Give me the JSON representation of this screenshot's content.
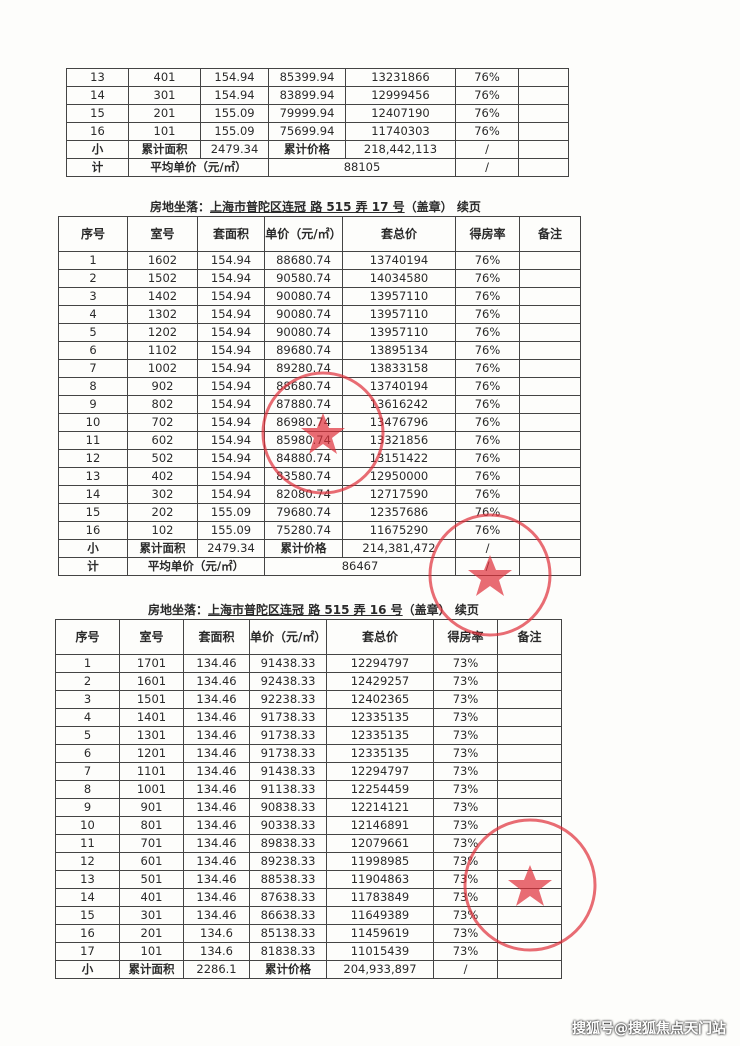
{
  "headers": [
    "序号",
    "室号",
    "套面积",
    "单价（元/㎡）",
    "套总价",
    "得房率",
    "备注"
  ],
  "labels": {
    "subtotal_top": "小",
    "subtotal_bottom": "计",
    "total_area": "累计面积",
    "total_price": "累计价格",
    "avg_price": "平均单价（元/㎡）",
    "slash": "/"
  },
  "table1": {
    "rows": [
      [
        "13",
        "401",
        "154.94",
        "85399.94",
        "13231866",
        "76%",
        ""
      ],
      [
        "14",
        "301",
        "154.94",
        "83899.94",
        "12999456",
        "76%",
        ""
      ],
      [
        "15",
        "201",
        "155.09",
        "79999.94",
        "12407190",
        "76%",
        ""
      ],
      [
        "16",
        "101",
        "155.09",
        "75699.94",
        "11740303",
        "76%",
        ""
      ]
    ],
    "total_area": "2479.34",
    "total_price": "218,442,113",
    "avg_price": "88105"
  },
  "table2": {
    "title_prefix": "房地坐落：",
    "title_address": "上海市普陀区连冠 路 515 弄  17 号",
    "title_suffix": "（盖章） 续页",
    "rows": [
      [
        "1",
        "1602",
        "154.94",
        "88680.74",
        "13740194",
        "76%",
        ""
      ],
      [
        "2",
        "1502",
        "154.94",
        "90580.74",
        "14034580",
        "76%",
        ""
      ],
      [
        "3",
        "1402",
        "154.94",
        "90080.74",
        "13957110",
        "76%",
        ""
      ],
      [
        "4",
        "1302",
        "154.94",
        "90080.74",
        "13957110",
        "76%",
        ""
      ],
      [
        "5",
        "1202",
        "154.94",
        "90080.74",
        "13957110",
        "76%",
        ""
      ],
      [
        "6",
        "1102",
        "154.94",
        "89680.74",
        "13895134",
        "76%",
        ""
      ],
      [
        "7",
        "1002",
        "154.94",
        "89280.74",
        "13833158",
        "76%",
        ""
      ],
      [
        "8",
        "902",
        "154.94",
        "88680.74",
        "13740194",
        "76%",
        ""
      ],
      [
        "9",
        "802",
        "154.94",
        "87880.74",
        "13616242",
        "76%",
        ""
      ],
      [
        "10",
        "702",
        "154.94",
        "86980.74",
        "13476796",
        "76%",
        ""
      ],
      [
        "11",
        "602",
        "154.94",
        "85980.74",
        "13321856",
        "76%",
        ""
      ],
      [
        "12",
        "502",
        "154.94",
        "84880.74",
        "13151422",
        "76%",
        ""
      ],
      [
        "13",
        "402",
        "154.94",
        "83580.74",
        "12950000",
        "76%",
        ""
      ],
      [
        "14",
        "302",
        "154.94",
        "82080.74",
        "12717590",
        "76%",
        ""
      ],
      [
        "15",
        "202",
        "155.09",
        "79680.74",
        "12357686",
        "76%",
        ""
      ],
      [
        "16",
        "102",
        "155.09",
        "75280.74",
        "11675290",
        "76%",
        ""
      ]
    ],
    "total_area": "2479.34",
    "total_price": "214,381,472",
    "avg_price": "86467"
  },
  "table3": {
    "title_prefix": "房地坐落：",
    "title_address": "上海市普陀区连冠 路 515 弄  16  号",
    "title_suffix": "（盖章） 续页",
    "rows": [
      [
        "1",
        "1701",
        "134.46",
        "91438.33",
        "12294797",
        "73%",
        ""
      ],
      [
        "2",
        "1601",
        "134.46",
        "92438.33",
        "12429257",
        "73%",
        ""
      ],
      [
        "3",
        "1501",
        "134.46",
        "92238.33",
        "12402365",
        "73%",
        ""
      ],
      [
        "4",
        "1401",
        "134.46",
        "91738.33",
        "12335135",
        "73%",
        ""
      ],
      [
        "5",
        "1301",
        "134.46",
        "91738.33",
        "12335135",
        "73%",
        ""
      ],
      [
        "6",
        "1201",
        "134.46",
        "91738.33",
        "12335135",
        "73%",
        ""
      ],
      [
        "7",
        "1101",
        "134.46",
        "91438.33",
        "12294797",
        "73%",
        ""
      ],
      [
        "8",
        "1001",
        "134.46",
        "91138.33",
        "12254459",
        "73%",
        ""
      ],
      [
        "9",
        "901",
        "134.46",
        "90838.33",
        "12214121",
        "73%",
        ""
      ],
      [
        "10",
        "801",
        "134.46",
        "90338.33",
        "12146891",
        "73%",
        ""
      ],
      [
        "11",
        "701",
        "134.46",
        "89838.33",
        "12079661",
        "73%",
        ""
      ],
      [
        "12",
        "601",
        "134.46",
        "89238.33",
        "11998985",
        "73%",
        ""
      ],
      [
        "13",
        "501",
        "134.46",
        "88538.33",
        "11904863",
        "73%",
        ""
      ],
      [
        "14",
        "401",
        "134.46",
        "87638.33",
        "11783849",
        "73%",
        ""
      ],
      [
        "15",
        "301",
        "134.46",
        "86638.33",
        "11649389",
        "73%",
        ""
      ],
      [
        "16",
        "201",
        "134.6",
        "85138.33",
        "11459619",
        "73%",
        ""
      ],
      [
        "17",
        "101",
        "134.6",
        "81838.33",
        "11015439",
        "73%",
        ""
      ]
    ],
    "total_area": "2286.1",
    "total_price": "204,933,897"
  },
  "watermark": "搜狐号@搜狐焦点天门站",
  "colors": {
    "stamp": "#e0303a",
    "ink": "#2a2a2a"
  }
}
